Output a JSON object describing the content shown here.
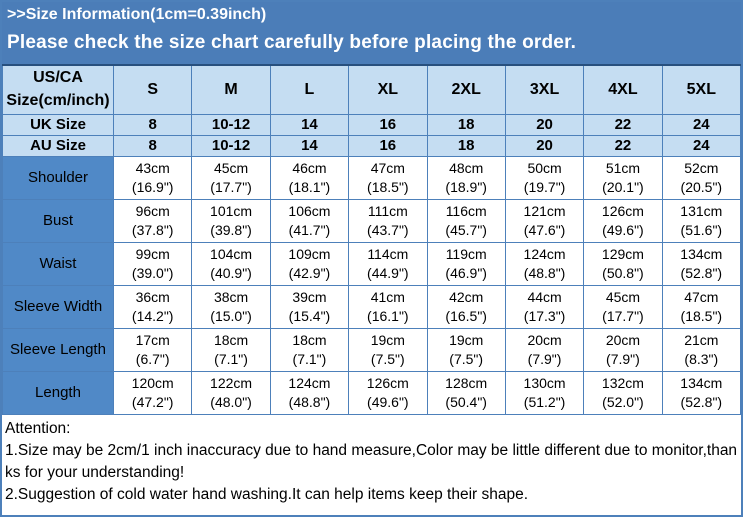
{
  "header": {
    "title": ">>Size Information(1cm=0.39inch)",
    "subtitle": "Please check the size chart carefully before placing the order."
  },
  "colors": {
    "banner_bg": "#4b7db8",
    "light_blue_bg": "#c5ddf2",
    "label_cell_bg": "#5089c7",
    "grid_border": "#4d80ba",
    "table_top_border": "#28507e",
    "banner_text": "#ffffff",
    "body_text": "#000000"
  },
  "table": {
    "corner_header": "US/CA Size(cm/inch)",
    "size_columns": [
      "S",
      "M",
      "L",
      "XL",
      "2XL",
      "3XL",
      "4XL",
      "5XL"
    ],
    "size_rows": [
      {
        "label": "UK Size",
        "values": [
          "8",
          "10-12",
          "14",
          "16",
          "18",
          "20",
          "22",
          "24"
        ]
      },
      {
        "label": "AU Size",
        "values": [
          "8",
          "10-12",
          "14",
          "16",
          "18",
          "20",
          "22",
          "24"
        ]
      }
    ],
    "measurement_rows": [
      {
        "label": "Shoulder",
        "cells": [
          {
            "cm": "43cm",
            "inch": "(16.9\")"
          },
          {
            "cm": "45cm",
            "inch": "(17.7\")"
          },
          {
            "cm": "46cm",
            "inch": "(18.1\")"
          },
          {
            "cm": "47cm",
            "inch": "(18.5\")"
          },
          {
            "cm": "48cm",
            "inch": "(18.9\")"
          },
          {
            "cm": "50cm",
            "inch": "(19.7\")"
          },
          {
            "cm": "51cm",
            "inch": "(20.1\")"
          },
          {
            "cm": "52cm",
            "inch": "(20.5\")"
          }
        ]
      },
      {
        "label": "Bust",
        "cells": [
          {
            "cm": "96cm",
            "inch": "(37.8\")"
          },
          {
            "cm": "101cm",
            "inch": "(39.8\")"
          },
          {
            "cm": "106cm",
            "inch": "(41.7\")"
          },
          {
            "cm": "111cm",
            "inch": "(43.7\")"
          },
          {
            "cm": "116cm",
            "inch": "(45.7\")"
          },
          {
            "cm": "121cm",
            "inch": "(47.6\")"
          },
          {
            "cm": "126cm",
            "inch": "(49.6\")"
          },
          {
            "cm": "131cm",
            "inch": "(51.6\")"
          }
        ]
      },
      {
        "label": "Waist",
        "cells": [
          {
            "cm": "99cm",
            "inch": "(39.0\")"
          },
          {
            "cm": "104cm",
            "inch": "(40.9\")"
          },
          {
            "cm": "109cm",
            "inch": "(42.9\")"
          },
          {
            "cm": "114cm",
            "inch": "(44.9\")"
          },
          {
            "cm": "119cm",
            "inch": "(46.9\")"
          },
          {
            "cm": "124cm",
            "inch": "(48.8\")"
          },
          {
            "cm": "129cm",
            "inch": "(50.8\")"
          },
          {
            "cm": "134cm",
            "inch": "(52.8\")"
          }
        ]
      },
      {
        "label": "Sleeve Width",
        "cells": [
          {
            "cm": "36cm",
            "inch": "(14.2\")"
          },
          {
            "cm": "38cm",
            "inch": "(15.0\")"
          },
          {
            "cm": "39cm",
            "inch": "(15.4\")"
          },
          {
            "cm": "41cm",
            "inch": "(16.1\")"
          },
          {
            "cm": "42cm",
            "inch": "(16.5\")"
          },
          {
            "cm": "44cm",
            "inch": "(17.3\")"
          },
          {
            "cm": "45cm",
            "inch": "(17.7\")"
          },
          {
            "cm": "47cm",
            "inch": "(18.5\")"
          }
        ]
      },
      {
        "label": "Sleeve Length",
        "cells": [
          {
            "cm": "17cm",
            "inch": "(6.7\")"
          },
          {
            "cm": "18cm",
            "inch": "(7.1\")"
          },
          {
            "cm": "18cm",
            "inch": "(7.1\")"
          },
          {
            "cm": "19cm",
            "inch": "(7.5\")"
          },
          {
            "cm": "19cm",
            "inch": "(7.5\")"
          },
          {
            "cm": "20cm",
            "inch": "(7.9\")"
          },
          {
            "cm": "20cm",
            "inch": "(7.9\")"
          },
          {
            "cm": "21cm",
            "inch": "(8.3\")"
          }
        ]
      },
      {
        "label": "Length",
        "cells": [
          {
            "cm": "120cm",
            "inch": "(47.2\")"
          },
          {
            "cm": "122cm",
            "inch": "(48.0\")"
          },
          {
            "cm": "124cm",
            "inch": "(48.8\")"
          },
          {
            "cm": "126cm",
            "inch": "(49.6\")"
          },
          {
            "cm": "128cm",
            "inch": "(50.4\")"
          },
          {
            "cm": "130cm",
            "inch": "(51.2\")"
          },
          {
            "cm": "132cm",
            "inch": "(52.0\")"
          },
          {
            "cm": "134cm",
            "inch": "(52.8\")"
          }
        ]
      }
    ]
  },
  "attention": {
    "heading": "Attention:",
    "notes": [
      "1.Size may be 2cm/1 inch inaccuracy due to hand measure,Color may be little different due to monitor,thanks for your understanding!",
      "2.Suggestion of cold water hand washing.It can help items keep their shape."
    ]
  }
}
